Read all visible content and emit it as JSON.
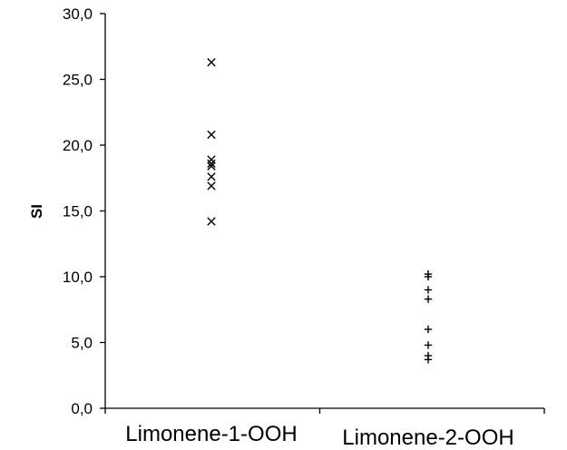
{
  "chart_data": {
    "type": "scatter",
    "title": "",
    "xlabel": "",
    "ylabel": "SI",
    "ylim": [
      0,
      30
    ],
    "yticks": [
      "0,0",
      "5,0",
      "10,0",
      "15,0",
      "20,0",
      "25,0",
      "30,0"
    ],
    "ytick_values": [
      0,
      5,
      10,
      15,
      20,
      25,
      30
    ],
    "categories": [
      "Limonene-1-OOH",
      "Limonene-2-OOH"
    ],
    "grid": false,
    "legend": "none",
    "series": [
      {
        "category": "Limonene-1-OOH",
        "marker": "x",
        "values": [
          26.3,
          20.8,
          18.9,
          18.6,
          18.4,
          17.6,
          16.9,
          14.2
        ]
      },
      {
        "category": "Limonene-2-OOH",
        "marker": "+",
        "values": [
          10.2,
          10.0,
          9.0,
          8.3,
          6.0,
          4.8,
          4.0,
          3.7
        ]
      }
    ]
  }
}
